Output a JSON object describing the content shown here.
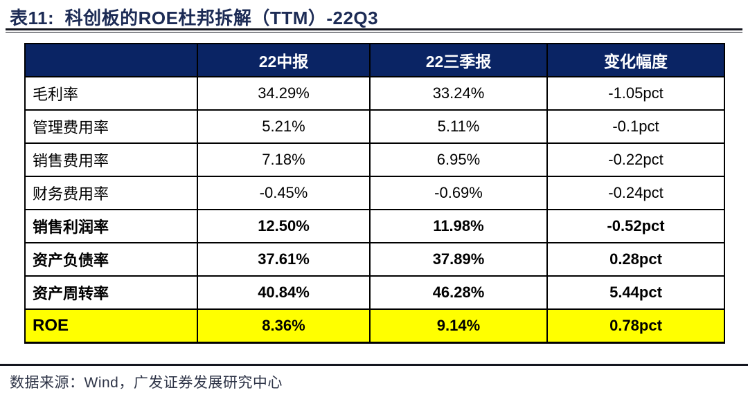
{
  "title": "表11:  科创板的ROE杜邦拆解（TTM）-22Q3",
  "table": {
    "columns": [
      "",
      "22中报",
      "22三季报",
      "变化幅度"
    ],
    "rows": [
      {
        "cells": [
          "毛利率",
          "34.29%",
          "33.24%",
          "-1.05pct"
        ]
      },
      {
        "cells": [
          "管理费用率",
          "5.21%",
          "5.11%",
          "-0.1pct"
        ]
      },
      {
        "cells": [
          "销售费用率",
          "7.18%",
          "6.95%",
          "-0.22pct"
        ]
      },
      {
        "cells": [
          "财务费用率",
          "-0.45%",
          "-0.69%",
          "-0.24pct"
        ]
      },
      {
        "cells": [
          "销售利润率",
          "12.50%",
          "11.98%",
          "-0.52pct"
        ]
      },
      {
        "cells": [
          "资产负债率",
          "37.61%",
          "37.89%",
          "0.28pct"
        ]
      },
      {
        "cells": [
          "资产周转率",
          "40.84%",
          "46.28%",
          "5.44pct"
        ]
      },
      {
        "cells": [
          "ROE",
          "8.36%",
          "9.14%",
          "0.78pct"
        ]
      }
    ]
  },
  "footer": {
    "source": "数据来源：Wind，广发证券发展研究中心"
  },
  "colors": {
    "header_bg": "#0a2464",
    "header_text": "#ffffff",
    "highlight_bg": "#ffff00",
    "title_text": "#1c2b55",
    "rule_color": "#14161f",
    "border_color": "#000000",
    "footer_text": "#2e3447"
  }
}
